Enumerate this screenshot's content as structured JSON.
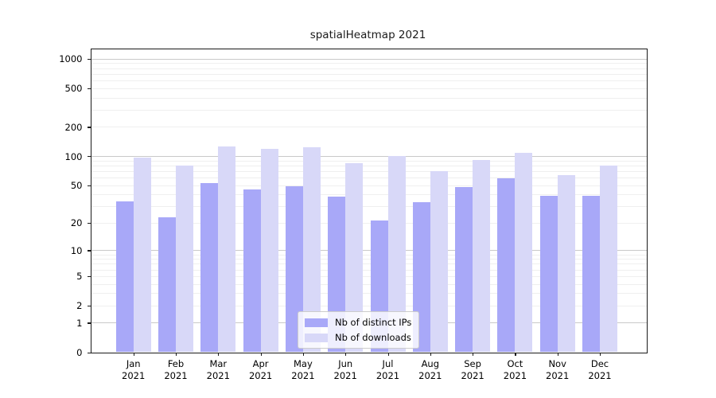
{
  "title": "spatialHeatmap 2021",
  "legend": {
    "items": [
      {
        "label": "Nb of distinct IPs",
        "color": "#a8a8f8"
      },
      {
        "label": "Nb of downloads",
        "color": "#d8d8f8"
      }
    ]
  },
  "colors": {
    "bar_distinct_ips": "#a8a8f8",
    "bar_downloads": "#d8d8f8",
    "grid_minor": "#efefef",
    "grid_major": "#c9c9c9",
    "spine": "#1a1a1a",
    "background": "#ffffff"
  },
  "chart_data": {
    "type": "bar",
    "title": "spatialHeatmap 2021",
    "xlabel": "",
    "ylabel": "",
    "scale": "log1p",
    "ylim": [
      0,
      1000
    ],
    "grid": "horizontal minor+major",
    "legend_position": "inside lower-center",
    "categories": [
      "Jan 2021",
      "Feb 2021",
      "Mar 2021",
      "Apr 2021",
      "May 2021",
      "Jun 2021",
      "Jul 2021",
      "Aug 2021",
      "Sep 2021",
      "Oct 2021",
      "Nov 2021",
      "Dec 2021"
    ],
    "series": [
      {
        "name": "Nb of distinct IPs",
        "color": "#a8a8f8",
        "values": [
          34,
          23,
          53,
          45,
          49,
          38,
          21,
          33,
          48,
          59,
          39,
          39
        ]
      },
      {
        "name": "Nb of downloads",
        "color": "#d8d8f8",
        "values": [
          97,
          80,
          125,
          118,
          124,
          84,
          100,
          70,
          91,
          109,
          64,
          80
        ]
      }
    ],
    "yticks": [
      0,
      1,
      2,
      5,
      10,
      20,
      50,
      100,
      200,
      500,
      1000
    ],
    "grid_major_values": [
      1,
      10,
      100,
      1000
    ],
    "grid_minor_values": [
      2,
      3,
      4,
      5,
      6,
      7,
      8,
      9,
      20,
      30,
      40,
      50,
      60,
      70,
      80,
      90,
      200,
      300,
      400,
      500,
      600,
      700,
      800,
      900
    ]
  }
}
